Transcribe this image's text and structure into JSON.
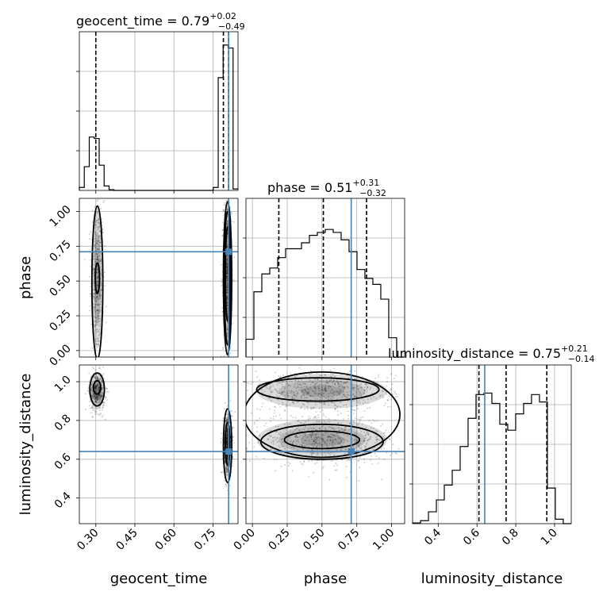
{
  "chart_data": {
    "type": "corner",
    "parameters": [
      "geocent_time",
      "phase",
      "luminosity_distance"
    ],
    "truths": {
      "geocent_time": 0.81,
      "phase": 0.71,
      "luminosity_distance": 0.64
    },
    "axes_ranges": {
      "geocent_time": [
        0.2367,
        0.8462
      ],
      "phase": [
        -0.0464,
        1.094
      ],
      "luminosity_distance": [
        0.2678,
        1.0862
      ]
    },
    "tick_labels": {
      "geocent_time": [
        "0.30",
        "0.45",
        "0.60",
        "0.75"
      ],
      "phase": [
        "0.00",
        "0.25",
        "0.50",
        "0.75",
        "1.00"
      ],
      "luminosity_distance": [
        "0.4",
        "0.6",
        "0.8",
        "1.0"
      ]
    },
    "diagonal": [
      {
        "parameter": "geocent_time",
        "title_main": "geocent_time = 0.79",
        "title_sup": "+0.02",
        "title_sub": "−0.49",
        "quantiles": [
          0.3,
          0.79,
          0.81
        ],
        "hist_edges": [
          0.2367,
          0.2557,
          0.2748,
          0.2938,
          0.3129,
          0.3319,
          0.351,
          0.37,
          0.3891,
          0.4081,
          0.4272,
          0.4462,
          0.4653,
          0.4843,
          0.5034,
          0.5224,
          0.5415,
          0.5605,
          0.5796,
          0.5986,
          0.6177,
          0.6367,
          0.6558,
          0.6748,
          0.6939,
          0.7129,
          0.732,
          0.751,
          0.7701,
          0.7891,
          0.8082,
          0.8272,
          0.8462
        ],
        "hist_counts": [
          0.02,
          0.16,
          0.36,
          0.35,
          0.17,
          0.03,
          0.005,
          0,
          0,
          0,
          0,
          0,
          0,
          0,
          0,
          0,
          0,
          0,
          0,
          0,
          0,
          0,
          0,
          0,
          0,
          0,
          0,
          0.02,
          0.76,
          0.98,
          0.96,
          0.01
        ]
      },
      {
        "parameter": "phase",
        "title_main": "phase = 0.51",
        "title_sup": "+0.31",
        "title_sub": "−0.32",
        "quantiles": [
          0.19,
          0.51,
          0.82
        ],
        "hist_edges": [
          -0.0464,
          0.0106,
          0.0676,
          0.1246,
          0.1816,
          0.2386,
          0.2956,
          0.3526,
          0.4096,
          0.4666,
          0.5236,
          0.5806,
          0.6376,
          0.6946,
          0.7516,
          0.8086,
          0.8656,
          0.9226,
          0.9796,
          1.0366,
          1.094
        ],
        "hist_counts": [
          0.12,
          0.44,
          0.56,
          0.6,
          0.67,
          0.73,
          0.73,
          0.77,
          0.82,
          0.84,
          0.86,
          0.84,
          0.79,
          0.71,
          0.59,
          0.53,
          0.49,
          0.39,
          0.13,
          0
        ],
        "ymax": 1.0
      },
      {
        "parameter": "luminosity_distance",
        "title_main": "luminosity_distance = 0.75",
        "title_sup": "+0.21",
        "title_sub": "−0.14",
        "quantiles": [
          0.61,
          0.75,
          0.96
        ],
        "hist_edges": [
          0.2678,
          0.3087,
          0.3496,
          0.3905,
          0.4314,
          0.4723,
          0.5132,
          0.5541,
          0.595,
          0.6359,
          0.6768,
          0.7177,
          0.7586,
          0.7995,
          0.8404,
          0.8813,
          0.9222,
          0.9631,
          1.004,
          1.0449,
          1.0862
        ],
        "hist_counts": [
          0.005,
          0.02,
          0.08,
          0.16,
          0.26,
          0.36,
          0.52,
          0.71,
          0.87,
          0.88,
          0.81,
          0.67,
          0.63,
          0.74,
          0.81,
          0.87,
          0.82,
          0.24,
          0.03,
          0
        ],
        "ymax": 1.0
      }
    ],
    "two_d": [
      {
        "x": "geocent_time",
        "y": "phase",
        "clusters": [
          {
            "cx": 0.306,
            "cy": 0.52,
            "sx": 0.012,
            "sy": 0.28,
            "weight": 0.36
          },
          {
            "cx": 0.806,
            "cy": 0.55,
            "sx": 0.008,
            "sy": 0.28,
            "weight": 0.64
          }
        ],
        "contours": [
          {
            "cx": 0.306,
            "cy": 0.49,
            "rx": 0.021,
            "ry": 0.55
          },
          {
            "cx": 0.306,
            "cy": 0.52,
            "rx": 0.008,
            "ry": 0.11
          },
          {
            "cx": 0.806,
            "cy": 0.52,
            "rx": 0.016,
            "ry": 0.55
          },
          {
            "cx": 0.806,
            "cy": 0.52,
            "rx": 0.012,
            "ry": 0.48
          },
          {
            "cx": 0.806,
            "cy": 0.55,
            "rx": 0.008,
            "ry": 0.34
          }
        ]
      },
      {
        "x": "geocent_time",
        "y": "luminosity_distance",
        "clusters": [
          {
            "cx": 0.305,
            "cy": 0.95,
            "sx": 0.015,
            "sy": 0.05,
            "weight": 0.36
          },
          {
            "cx": 0.806,
            "cy": 0.67,
            "sx": 0.008,
            "sy": 0.08,
            "weight": 0.64
          }
        ],
        "contours": [
          {
            "cx": 0.305,
            "cy": 0.96,
            "rx": 0.028,
            "ry": 0.085
          },
          {
            "cx": 0.305,
            "cy": 0.97,
            "rx": 0.014,
            "ry": 0.035
          },
          {
            "cx": 0.806,
            "cy": 0.67,
            "rx": 0.016,
            "ry": 0.19
          },
          {
            "cx": 0.806,
            "cy": 0.68,
            "rx": 0.009,
            "ry": 0.11
          }
        ]
      },
      {
        "x": "phase",
        "y": "luminosity_distance",
        "clusters": [
          {
            "cx": 0.5,
            "cy": 0.7,
            "sx": 0.26,
            "sy": 0.06,
            "weight": 0.55
          },
          {
            "cx": 0.5,
            "cy": 0.95,
            "sx": 0.26,
            "sy": 0.05,
            "weight": 0.45
          }
        ],
        "contours": [
          {
            "cx": 0.5,
            "cy": 0.83,
            "rx": 0.56,
            "ry": 0.22
          },
          {
            "cx": 0.47,
            "cy": 0.96,
            "rx": 0.44,
            "ry": 0.06
          },
          {
            "cx": 0.5,
            "cy": 0.69,
            "rx": 0.44,
            "ry": 0.09
          },
          {
            "cx": 0.5,
            "cy": 0.7,
            "rx": 0.27,
            "ry": 0.045
          }
        ]
      }
    ]
  }
}
